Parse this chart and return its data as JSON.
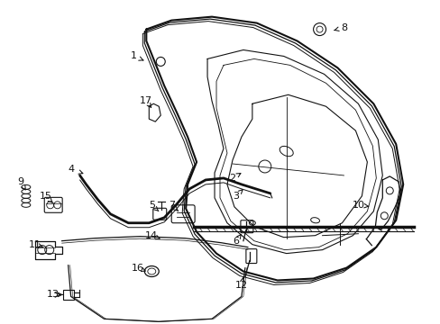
{
  "background_color": "#ffffff",
  "line_color": "#111111",
  "text_color": "#111111",
  "fig_width": 4.89,
  "fig_height": 3.6,
  "dpi": 100,
  "labels": {
    "1": {
      "lpos": [
        148,
        62
      ],
      "apos": [
        162,
        68
      ]
    },
    "2": {
      "lpos": [
        258,
        198
      ],
      "apos": [
        268,
        192
      ]
    },
    "3": {
      "lpos": [
        262,
        218
      ],
      "apos": [
        270,
        210
      ]
    },
    "4": {
      "lpos": [
        78,
        188
      ],
      "apos": [
        95,
        194
      ]
    },
    "5": {
      "lpos": [
        168,
        228
      ],
      "apos": [
        178,
        237
      ]
    },
    "6": {
      "lpos": [
        262,
        268
      ],
      "apos": [
        268,
        260
      ]
    },
    "7": {
      "lpos": [
        190,
        228
      ],
      "apos": [
        200,
        237
      ]
    },
    "8": {
      "lpos": [
        382,
        30
      ],
      "apos": [
        368,
        34
      ]
    },
    "9": {
      "lpos": [
        22,
        202
      ],
      "apos": [
        28,
        212
      ]
    },
    "10": {
      "lpos": [
        398,
        228
      ],
      "apos": [
        413,
        230
      ]
    },
    "11": {
      "lpos": [
        38,
        272
      ],
      "apos": [
        50,
        276
      ]
    },
    "12": {
      "lpos": [
        268,
        318
      ],
      "apos": [
        270,
        308
      ]
    },
    "13": {
      "lpos": [
        58,
        328
      ],
      "apos": [
        72,
        328
      ]
    },
    "14": {
      "lpos": [
        168,
        262
      ],
      "apos": [
        178,
        266
      ]
    },
    "15": {
      "lpos": [
        50,
        218
      ],
      "apos": [
        58,
        226
      ]
    },
    "16": {
      "lpos": [
        152,
        298
      ],
      "apos": [
        162,
        302
      ]
    },
    "17": {
      "lpos": [
        162,
        112
      ],
      "apos": [
        168,
        120
      ]
    }
  }
}
